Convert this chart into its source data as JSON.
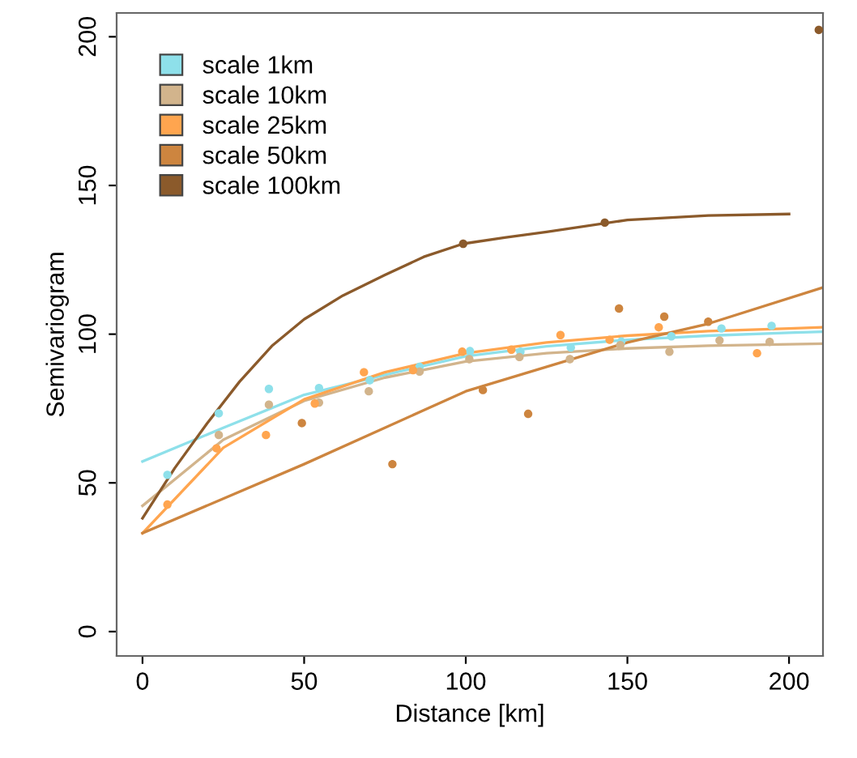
{
  "chart_data": {
    "type": "scatter",
    "xlabel": "Distance [km]",
    "ylabel": "Semivariogram",
    "xlim": [
      -8,
      210.5
    ],
    "ylim": [
      -8.2,
      208
    ],
    "xticks": [
      0,
      50,
      100,
      150,
      200
    ],
    "yticks": [
      0,
      50,
      100,
      150,
      200
    ],
    "grid": false,
    "legend": "top left",
    "series": [
      {
        "name": "scale 1km",
        "marker": "circle",
        "color": "#8ee0ea",
        "x": [
          7.7,
          23.6,
          39.1,
          54.6,
          70.3,
          85.7,
          101.3,
          116.9,
          132.5,
          148.1,
          163.6,
          179.1,
          194.6
        ],
        "values": [
          52.7,
          73.4,
          81.6,
          81.9,
          84.5,
          89,
          94.3,
          94.1,
          95.5,
          97.5,
          99.3,
          101.9,
          102.8
        ]
      },
      {
        "name": "scale 10km",
        "marker": "circle",
        "color": "#d2b48c",
        "x": [
          23.6,
          39.1,
          54.6,
          70.0,
          85.7,
          101.1,
          116.6,
          132.2,
          147.8,
          163.0,
          178.5,
          194.0
        ],
        "values": [
          66.1,
          76.3,
          77,
          80.8,
          87.4,
          91.6,
          92.3,
          91.6,
          96.3,
          94.1,
          97.9,
          97.4
        ]
      },
      {
        "name": "scale 25km",
        "marker": "circle",
        "color": "#ffa54f",
        "x": [
          7.7,
          22.9,
          38.2,
          53.3,
          68.5,
          83.7,
          98.9,
          114.1,
          129.3,
          144.5,
          159.7,
          190.1
        ],
        "values": [
          42.7,
          61.6,
          66.1,
          76.7,
          87.2,
          87.9,
          94.1,
          94.8,
          99.7,
          98.1,
          102.3,
          93.6
        ]
      },
      {
        "name": "scale 50km",
        "marker": "circle",
        "color": "#cd853f",
        "x": [
          49.3,
          77.3,
          105.3,
          119.3,
          147.4,
          161.4,
          175.0
        ],
        "values": [
          70.1,
          56.3,
          81.2,
          73.2,
          108.6,
          105.9,
          104.2
        ]
      },
      {
        "name": "scale 100km",
        "marker": "circle",
        "color": "#8b5a2b",
        "x": [
          99.2,
          143.0,
          209.2
        ],
        "values": [
          130.4,
          137.5,
          202.3
        ]
      },
      {
        "type": "line",
        "color": "#8ee0ea",
        "x": [
          0,
          25,
          50,
          75,
          100,
          125,
          150,
          175,
          200,
          210
        ],
        "values": [
          57.2,
          68.5,
          79.6,
          86.3,
          92.6,
          95.9,
          98.1,
          99.5,
          100.5,
          100.8
        ]
      },
      {
        "type": "line",
        "color": "#d2b48c",
        "x": [
          0,
          25,
          50,
          75,
          100,
          125,
          150,
          175,
          200,
          210
        ],
        "values": [
          42.3,
          64.5,
          77.6,
          85.4,
          90.8,
          93.6,
          95.2,
          96.1,
          96.6,
          96.8
        ]
      },
      {
        "type": "line",
        "color": "#ffa54f",
        "x": [
          0,
          25,
          50,
          75,
          100,
          125,
          150,
          175,
          200,
          210
        ],
        "values": [
          33.1,
          61.8,
          78.1,
          87.2,
          93.6,
          97.2,
          99.5,
          101.0,
          101.9,
          102.3
        ]
      },
      {
        "type": "line",
        "color": "#cd853f",
        "x": [
          0,
          50,
          100,
          150,
          175,
          210
        ],
        "values": [
          33.1,
          56.3,
          80.8,
          97.2,
          103.5,
          115.5
        ]
      },
      {
        "type": "line",
        "color": "#8b5a2b",
        "x": [
          0,
          10,
          20,
          30,
          40,
          50,
          62,
          75,
          87,
          99.2,
          112,
          125,
          150,
          175,
          200
        ],
        "values": [
          38.1,
          55,
          70,
          84,
          96,
          105,
          113,
          119.9,
          126,
          130.4,
          132.5,
          134.4,
          138.4,
          139.9,
          140.4
        ]
      }
    ]
  }
}
